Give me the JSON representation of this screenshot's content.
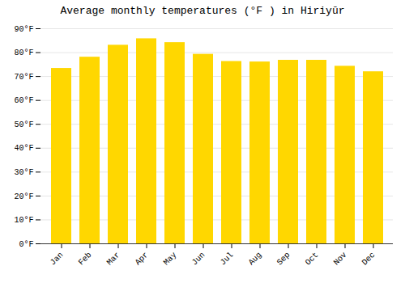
{
  "chart_data": {
    "type": "bar",
    "title": "Average monthly temperatures (°F ) in Hiriyūr",
    "categories": [
      "Jan",
      "Feb",
      "Mar",
      "Apr",
      "May",
      "Jun",
      "Jul",
      "Aug",
      "Sep",
      "Oct",
      "Nov",
      "Dec"
    ],
    "values": [
      73.4,
      78.1,
      83.1,
      85.8,
      84.2,
      79.3,
      76.3,
      76.1,
      76.8,
      76.8,
      74.3,
      72.0
    ],
    "color": "#FFD700",
    "ylim": [
      0,
      90
    ],
    "yticks": [
      {
        "value": 0,
        "label": "0°F"
      },
      {
        "value": 10,
        "label": "10°F"
      },
      {
        "value": 20,
        "label": "20°F"
      },
      {
        "value": 30,
        "label": "30°F"
      },
      {
        "value": 40,
        "label": "40°F"
      },
      {
        "value": 50,
        "label": "50°F"
      },
      {
        "value": 60,
        "label": "60°F"
      },
      {
        "value": 70,
        "label": "70°F"
      },
      {
        "value": 80,
        "label": "80°F"
      },
      {
        "value": 90,
        "label": "90°F"
      }
    ],
    "grid": true
  }
}
